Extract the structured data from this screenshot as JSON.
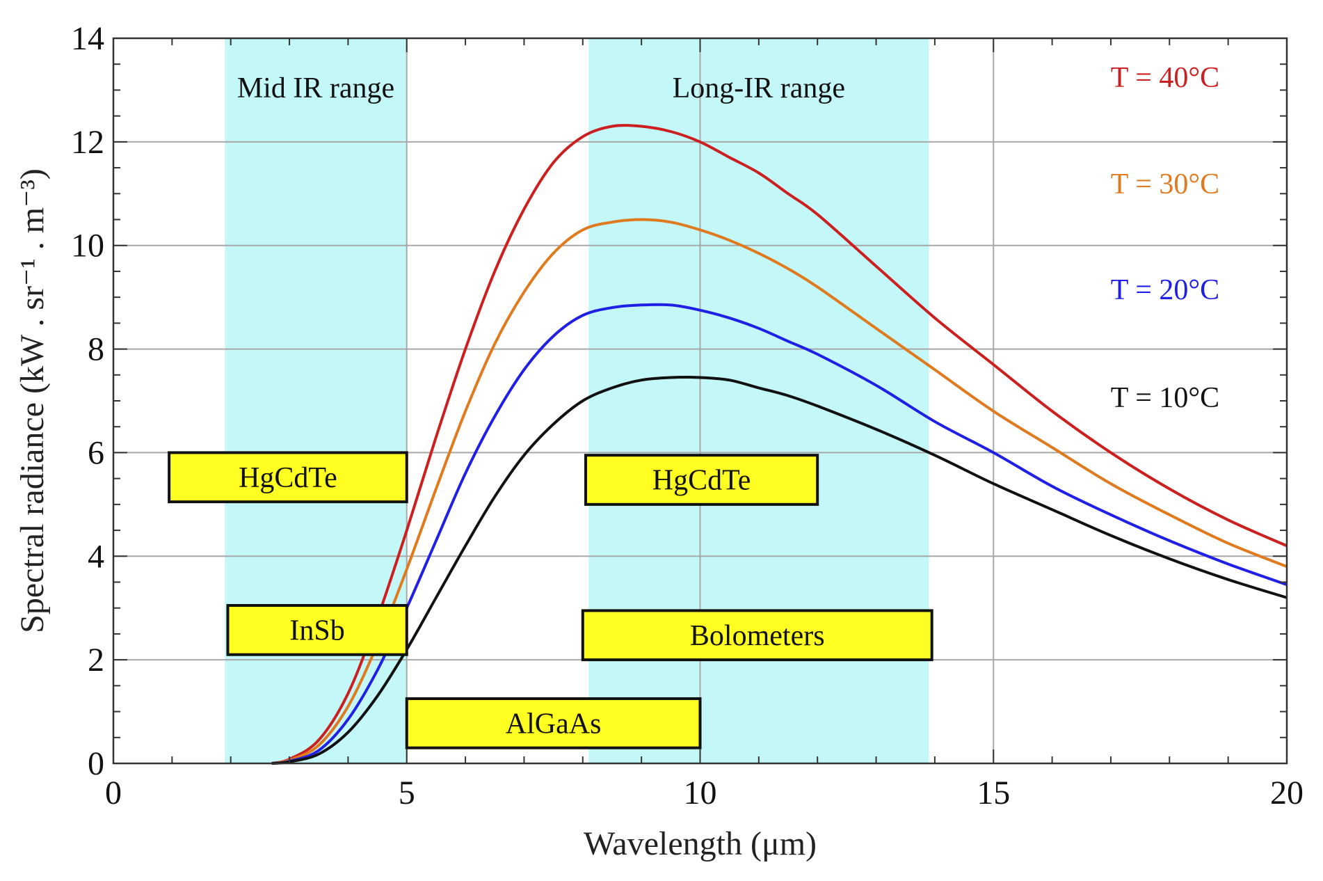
{
  "chart_data": {
    "type": "line",
    "xlabel": "Wavelength (μm)",
    "ylabel": "Spectral radiance (kW . sr⁻¹ . m⁻³)",
    "xlim": [
      0,
      20
    ],
    "ylim": [
      0,
      14
    ],
    "xticks": [
      0,
      5,
      10,
      15,
      20
    ],
    "yticks": [
      0,
      2,
      4,
      6,
      8,
      10,
      12,
      14
    ],
    "grid": true,
    "x": [
      3,
      3.5,
      4,
      4.5,
      5,
      5.5,
      6,
      6.5,
      7,
      7.5,
      8,
      8.5,
      9,
      9.5,
      10,
      10.5,
      11,
      11.5,
      12,
      13,
      14,
      15,
      16,
      17,
      18,
      19,
      20
    ],
    "series": [
      {
        "name": "T = 40°C",
        "color": "#cc1f1f",
        "values": [
          0.08,
          0.45,
          1.35,
          2.8,
          4.5,
          6.3,
          8.0,
          9.5,
          10.7,
          11.6,
          12.1,
          12.3,
          12.3,
          12.2,
          12.0,
          11.7,
          11.4,
          11.0,
          10.6,
          9.6,
          8.6,
          7.7,
          6.8,
          6.0,
          5.3,
          4.7,
          4.2
        ]
      },
      {
        "name": "T = 30°C",
        "color": "#e07a1f",
        "values": [
          0.06,
          0.35,
          1.1,
          2.3,
          3.75,
          5.3,
          6.8,
          8.1,
          9.1,
          9.85,
          10.3,
          10.45,
          10.5,
          10.45,
          10.3,
          10.1,
          9.85,
          9.55,
          9.2,
          8.4,
          7.6,
          6.8,
          6.1,
          5.4,
          4.8,
          4.25,
          3.8
        ]
      },
      {
        "name": "T = 20°C",
        "color": "#1f1fe6",
        "values": [
          0.04,
          0.25,
          0.85,
          1.8,
          3.0,
          4.3,
          5.6,
          6.7,
          7.6,
          8.25,
          8.65,
          8.8,
          8.85,
          8.85,
          8.75,
          8.6,
          8.4,
          8.15,
          7.9,
          7.3,
          6.6,
          6.0,
          5.35,
          4.8,
          4.3,
          3.85,
          3.45
        ]
      },
      {
        "name": "T = 10°C",
        "color": "#111111",
        "values": [
          0.03,
          0.18,
          0.6,
          1.3,
          2.2,
          3.2,
          4.2,
          5.15,
          5.95,
          6.55,
          7.0,
          7.25,
          7.4,
          7.45,
          7.45,
          7.4,
          7.25,
          7.1,
          6.9,
          6.45,
          5.95,
          5.4,
          4.9,
          4.4,
          3.95,
          3.55,
          3.2
        ]
      }
    ],
    "regions": [
      {
        "label": "Mid IR range",
        "x_start": 1.9,
        "x_end": 5.0,
        "color": "#c4f7f7"
      },
      {
        "label": "Long-IR range",
        "x_start": 8.1,
        "x_end": 13.9,
        "color": "#c4f7f7"
      }
    ],
    "detectors": [
      {
        "label": "HgCdTe",
        "x_start": 0.95,
        "x_end": 5.0,
        "y_low": 5.05,
        "y_high": 6.0
      },
      {
        "label": "InSb",
        "x_start": 1.95,
        "x_end": 5.0,
        "y_low": 2.1,
        "y_high": 3.05
      },
      {
        "label": "HgCdTe",
        "x_start": 8.05,
        "x_end": 12.0,
        "y_low": 5.0,
        "y_high": 5.95
      },
      {
        "label": "Bolometers",
        "x_start": 8.0,
        "x_end": 13.95,
        "y_low": 2.0,
        "y_high": 2.95
      },
      {
        "label": "AlGaAs",
        "x_start": 5.0,
        "x_end": 10.0,
        "y_low": 0.3,
        "y_high": 1.25
      }
    ],
    "detector_color": "#ffff22"
  }
}
